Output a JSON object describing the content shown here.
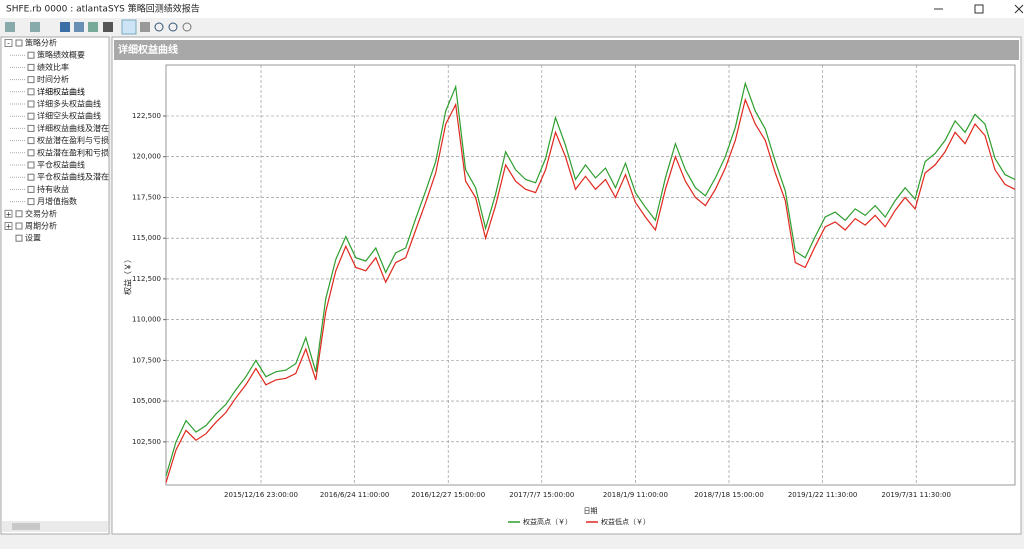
{
  "window": {
    "title": "SHFE.rb 0000 : atlantaSYS 策略回测绩效报告"
  },
  "tree": {
    "nodes": [
      {
        "label": "策略分析",
        "level": 0,
        "expand": "-"
      },
      {
        "label": "策略绩效概要",
        "level": 1
      },
      {
        "label": "绩效比率",
        "level": 1
      },
      {
        "label": "时间分析",
        "level": 1
      },
      {
        "label": "详细权益曲线",
        "level": 1
      },
      {
        "label": "详细多头权益曲线",
        "level": 1
      },
      {
        "label": "详细空头权益曲线",
        "level": 1
      },
      {
        "label": "详细权益曲线及潜在",
        "level": 1
      },
      {
        "label": "权益潜在盈利与亏损",
        "level": 1
      },
      {
        "label": "权益潜在盈利和亏损",
        "level": 1
      },
      {
        "label": "平仓权益曲线",
        "level": 1
      },
      {
        "label": "平仓权益曲线及潜在",
        "level": 1
      },
      {
        "label": "持有收益",
        "level": 1
      },
      {
        "label": "月增值指数",
        "level": 1
      },
      {
        "label": "交易分析",
        "level": 0,
        "expand": "+"
      },
      {
        "label": "周期分析",
        "level": 0,
        "expand": "+"
      },
      {
        "label": "设置",
        "level": 0
      }
    ]
  },
  "panel": {
    "title": "详细权益曲线"
  },
  "chart_data": {
    "type": "line",
    "x_label": "日期",
    "y_label": "权益（￥）",
    "xtick_labels": [
      "2015/12/16 23:00:00",
      "2016/6/24 11:00:00",
      "2016/12/27 15:00:00",
      "2017/7/7 15:00:00",
      "2018/1/9 11:00:00",
      "2018/7/18 15:00:00",
      "2019/1/22 11:30:00",
      "2019/7/31 11:30:00"
    ],
    "ylim": [
      99850,
      125630
    ],
    "yticks": [
      {
        "value": 102500,
        "label": "102,500"
      },
      {
        "value": 105000,
        "label": "105,000"
      },
      {
        "value": 107500,
        "label": "107,500"
      },
      {
        "value": 110000,
        "label": "110,000"
      },
      {
        "value": 112500,
        "label": "112,500"
      },
      {
        "value": 115000,
        "label": "115,000"
      },
      {
        "value": 117500,
        "label": "117,500"
      },
      {
        "value": 120000,
        "label": "120,000"
      },
      {
        "value": 122500,
        "label": "122,500"
      }
    ],
    "grid": true,
    "series": [
      {
        "name": "权益高点（￥）",
        "color": "#2e9e2e",
        "values": [
          100400,
          102500,
          103800,
          103100,
          103500,
          104200,
          104800,
          105700,
          106500,
          107500,
          106500,
          106800,
          106900,
          107300,
          108900,
          106800,
          111300,
          113700,
          115100,
          113800,
          113600,
          114400,
          112900,
          114100,
          114400,
          116200,
          117900,
          119700,
          122800,
          124300,
          119200,
          118100,
          115600,
          117700,
          120300,
          119200,
          118600,
          118400,
          119900,
          122400,
          120700,
          118600,
          119500,
          118700,
          119300,
          118100,
          119600,
          117800,
          116900,
          116100,
          118700,
          120800,
          119200,
          118100,
          117600,
          118700,
          120000,
          121800,
          124500,
          122800,
          121700,
          119700,
          117900,
          114200,
          113800,
          115100,
          116300,
          116600,
          116100,
          116800,
          116400,
          117000,
          116300,
          117300,
          118100,
          117400,
          119700,
          120200,
          121000,
          122200,
          121500,
          122600,
          122000,
          119900,
          118900,
          118600
        ]
      },
      {
        "name": "权益低点（￥）",
        "color": "#e0281e",
        "values": [
          100000,
          102000,
          103200,
          102600,
          103000,
          103700,
          104300,
          105200,
          106000,
          107000,
          106000,
          106300,
          106400,
          106700,
          108200,
          106300,
          110500,
          113000,
          114500,
          113200,
          113000,
          113800,
          112300,
          113500,
          113800,
          115500,
          117200,
          119000,
          122000,
          123200,
          118500,
          117500,
          115000,
          117000,
          119500,
          118500,
          118000,
          117800,
          119200,
          121500,
          120000,
          118000,
          118800,
          118000,
          118600,
          117500,
          118900,
          117200,
          116300,
          115500,
          118000,
          120000,
          118500,
          117500,
          117000,
          118000,
          119300,
          121000,
          123500,
          122000,
          121000,
          119000,
          117300,
          113500,
          113200,
          114500,
          115700,
          116000,
          115500,
          116200,
          115800,
          116400,
          115700,
          116700,
          117500,
          116800,
          119000,
          119500,
          120300,
          121500,
          120800,
          122000,
          121300,
          119200,
          118300,
          118000
        ]
      }
    ]
  }
}
